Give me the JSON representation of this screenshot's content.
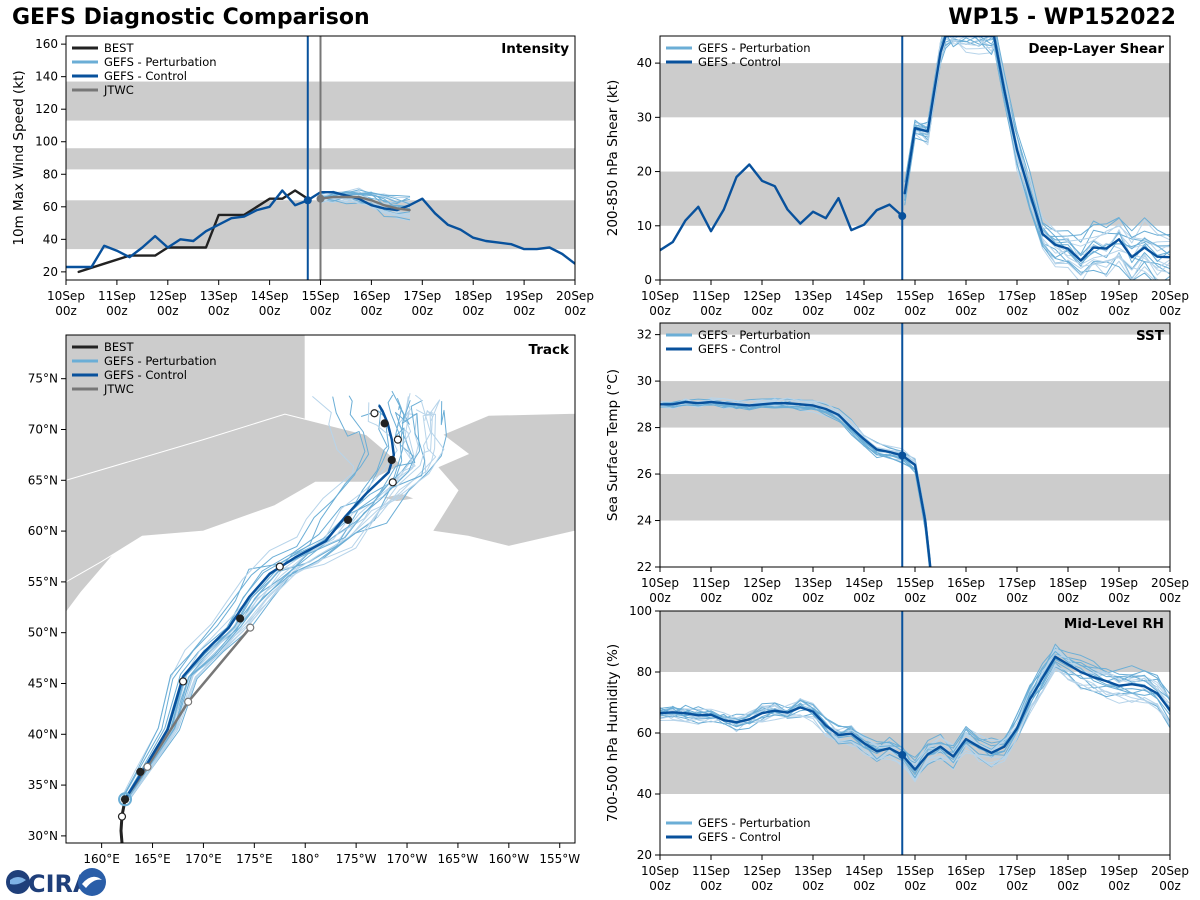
{
  "header": {
    "title_left": "GEFS Diagnostic Comparison",
    "title_right": "WP15 - WP152022"
  },
  "logo": {
    "text": "CIRA"
  },
  "colors": {
    "best": "#222222",
    "perturbation": "#6baed6",
    "perturbation_light": "#b7d4ea",
    "control": "#08519c",
    "jtwc": "#777777",
    "band": "#cccccc",
    "land": "#cccccc"
  },
  "time_ticks": [
    {
      "day": "10Sep",
      "hr": "00z"
    },
    {
      "day": "11Sep",
      "hr": "00z"
    },
    {
      "day": "12Sep",
      "hr": "00z"
    },
    {
      "day": "13Sep",
      "hr": "00z"
    },
    {
      "day": "14Sep",
      "hr": "00z"
    },
    {
      "day": "15Sep",
      "hr": "00z"
    },
    {
      "day": "16Sep",
      "hr": "00z"
    },
    {
      "day": "17Sep",
      "hr": "00z"
    },
    {
      "day": "18Sep",
      "hr": "00z"
    },
    {
      "day": "19Sep",
      "hr": "00z"
    },
    {
      "day": "20Sep",
      "hr": "00z"
    }
  ],
  "chart_data": [
    {
      "id": "intensity",
      "type": "line",
      "panel_label": "Intensity",
      "ylabel": "10m Max Wind Speed (kt)",
      "xlim": [
        0,
        10
      ],
      "ylim": [
        15,
        165
      ],
      "yticks": [
        20,
        40,
        60,
        80,
        100,
        120,
        140,
        160
      ],
      "bands": [
        [
          34,
          64
        ],
        [
          83,
          96
        ],
        [
          113,
          137
        ]
      ],
      "init_time": 4.75,
      "jtwc_time": 5.0,
      "legend": [
        "BEST",
        "GEFS - Perturbation",
        "GEFS - Control",
        "JTWC"
      ],
      "series": [
        {
          "name": "BEST",
          "x": [
            0.25,
            0.75,
            1.25,
            1.5,
            1.75,
            2.0,
            2.25,
            2.5,
            2.75,
            3.0,
            3.25,
            3.5,
            3.75,
            4.0,
            4.25,
            4.5,
            4.75
          ],
          "y": [
            20,
            25,
            30,
            30,
            30,
            35,
            35,
            35,
            35,
            55,
            55,
            55,
            60,
            65,
            65,
            70,
            65
          ]
        },
        {
          "name": "GEFS - Control",
          "x": [
            0,
            0.25,
            0.5,
            0.75,
            1.0,
            1.25,
            1.5,
            1.75,
            2.0,
            2.25,
            2.5,
            2.75,
            3.0,
            3.25,
            3.5,
            3.75,
            4.0,
            4.25,
            4.5,
            4.75
          ],
          "y": [
            23,
            23,
            23,
            36,
            33,
            29,
            35,
            42,
            35,
            40,
            39,
            45,
            49,
            53,
            54,
            58,
            60,
            70,
            61,
            64
          ]
        },
        {
          "name": "GEFS - Control (forecast)",
          "x": [
            4.75,
            5.0,
            5.25,
            5.5,
            5.75,
            6.0,
            6.25,
            6.5,
            6.75,
            7.0,
            7.25,
            7.5,
            7.75,
            8.0,
            8.25,
            8.5,
            8.75,
            9.0,
            9.25,
            9.5,
            9.75,
            10.0
          ],
          "y": [
            64,
            69,
            69,
            67,
            65,
            61,
            59,
            58,
            61,
            65,
            56,
            49,
            46,
            41,
            39,
            38,
            37,
            34,
            34,
            35,
            31,
            25
          ]
        },
        {
          "name": "JTWC",
          "x": [
            5.0,
            5.25,
            5.5,
            5.75,
            6.0,
            6.25,
            6.5,
            6.75
          ],
          "y": [
            65,
            66,
            66,
            66,
            64,
            61,
            59,
            58
          ]
        }
      ]
    },
    {
      "id": "shear",
      "type": "line",
      "panel_label": "Deep-Layer Shear",
      "ylabel": "200-850 hPa Shear (kt)",
      "xlim": [
        0,
        10
      ],
      "ylim": [
        0,
        45
      ],
      "yticks": [
        0,
        10,
        20,
        30,
        40
      ],
      "bands": [
        [
          10,
          20
        ],
        [
          30,
          40
        ]
      ],
      "init_time": 4.75,
      "legend": [
        "GEFS - Perturbation",
        "GEFS - Control"
      ],
      "series": [
        {
          "name": "GEFS - Control (analysis)",
          "x": [
            0,
            0.25,
            0.5,
            0.75,
            1.0,
            1.25,
            1.5,
            1.75,
            2.0,
            2.25,
            2.5,
            2.75,
            3.0,
            3.25,
            3.5,
            3.75,
            4.0,
            4.25,
            4.5,
            4.75
          ],
          "y": [
            5.5,
            7,
            11,
            13.5,
            9,
            13,
            19,
            21.3,
            18.3,
            17.3,
            13,
            10.4,
            12.6,
            11.4,
            15.1,
            9.2,
            10.2,
            12.9,
            13.9,
            11.8
          ]
        },
        {
          "name": "GEFS - Control",
          "x": [
            4.8,
            5.0,
            5.25,
            5.5,
            5.6,
            5.75,
            6.0,
            6.25,
            6.5,
            6.55,
            6.75,
            7.0,
            7.25,
            7.5,
            7.75,
            8.0,
            8.25,
            8.5,
            8.75,
            9.0,
            9.25,
            9.5,
            9.75,
            10.0
          ],
          "y": [
            16,
            28,
            27.4,
            42,
            45,
            45,
            45,
            45,
            45,
            45,
            35,
            24,
            16,
            8.5,
            6.5,
            5.8,
            3.6,
            6,
            5.8,
            7.5,
            4.2,
            6,
            4.3,
            4.2
          ]
        }
      ]
    },
    {
      "id": "track",
      "type": "map",
      "panel_label": "Track",
      "legend": [
        "BEST",
        "GEFS - Perturbation",
        "GEFS - Control",
        "JTWC"
      ],
      "lon_ticks": [
        "160°E",
        "165°E",
        "170°E",
        "175°E",
        "180°",
        "175°W",
        "170°W",
        "165°W",
        "160°W",
        "155°W"
      ],
      "lon_values": [
        160,
        165,
        170,
        175,
        180,
        185,
        190,
        195,
        200,
        205
      ],
      "lat_ticks": [
        "30°N",
        "35°N",
        "40°N",
        "45°N",
        "50°N",
        "55°N",
        "60°N",
        "65°N",
        "70°N",
        "75°N"
      ],
      "lat_values": [
        30,
        35,
        40,
        45,
        50,
        55,
        60,
        65,
        70,
        75
      ],
      "lon_range": [
        156.5,
        206.5
      ],
      "lat_range": [
        29.3,
        79.3
      ],
      "series": [
        {
          "name": "BEST",
          "lon": [
            162,
            161.9,
            162.0,
            162.2,
            162.3
          ],
          "lat": [
            29.3,
            30.5,
            32,
            33.0,
            33.6
          ]
        },
        {
          "name": "GEFS - Control",
          "lon": [
            162.3,
            164,
            166.5,
            168,
            170,
            172.5,
            174.5,
            176.5,
            179,
            182,
            184,
            186,
            188.2,
            188.7,
            188.5,
            188.1,
            187.6,
            187.3
          ],
          "lat": [
            33.6,
            36.3,
            40.5,
            45.7,
            48,
            50.5,
            53.5,
            55.8,
            57.4,
            59,
            61.5,
            63.7,
            65.8,
            67.5,
            69,
            70.6,
            71.8,
            72.3
          ]
        },
        {
          "name": "JTWC",
          "lon": [
            162.3,
            164.5,
            168.5,
            174.6
          ],
          "lat": [
            33.6,
            36.8,
            43.2,
            50.5
          ]
        }
      ],
      "best_points": [
        {
          "lon": 162.0,
          "lat": 31.9,
          "filled": false
        },
        {
          "lon": 162.3,
          "lat": 33.6,
          "filled": true
        },
        {
          "lon": 163.8,
          "lat": 36.3,
          "filled": true
        },
        {
          "lon": 168.0,
          "lat": 45.2,
          "filled": false
        },
        {
          "lon": 173.6,
          "lat": 51.4,
          "filled": true
        },
        {
          "lon": 177.5,
          "lat": 56.5,
          "filled": false
        },
        {
          "lon": 184.2,
          "lat": 61.1,
          "filled": true
        },
        {
          "lon": 188.6,
          "lat": 64.8,
          "filled": false
        },
        {
          "lon": 188.5,
          "lat": 67.0,
          "filled": true
        },
        {
          "lon": 189.1,
          "lat": 69.0,
          "filled": false
        },
        {
          "lon": 187.8,
          "lat": 70.6,
          "filled": true
        },
        {
          "lon": 186.8,
          "lat": 71.6,
          "filled": false
        }
      ],
      "jtwc_points": [
        {
          "lon": 164.5,
          "lat": 36.8
        },
        {
          "lon": 168.5,
          "lat": 43.2
        },
        {
          "lon": 174.6,
          "lat": 50.5
        }
      ]
    },
    {
      "id": "sst",
      "type": "line",
      "panel_label": "SST",
      "ylabel": "Sea Surface Temp (°C)",
      "xlim": [
        0,
        10
      ],
      "ylim": [
        22,
        32.5
      ],
      "yticks": [
        22,
        24,
        26,
        28,
        30,
        32
      ],
      "bands": [
        [
          24,
          26
        ],
        [
          28,
          30
        ],
        [
          32,
          34
        ]
      ],
      "init_time": 4.75,
      "legend": [
        "GEFS - Perturbation",
        "GEFS - Control"
      ],
      "series": [
        {
          "name": "GEFS - Control",
          "x": [
            0,
            0.25,
            0.5,
            0.75,
            1.0,
            1.25,
            1.5,
            1.75,
            2.0,
            2.25,
            2.5,
            2.75,
            3.0,
            3.25,
            3.5,
            3.75,
            4.0,
            4.25,
            4.5,
            4.75,
            5.0,
            5.2,
            5.3
          ],
          "y": [
            29.0,
            29.0,
            29.1,
            29.05,
            29.1,
            29.05,
            29.0,
            28.95,
            29.0,
            29.05,
            29.05,
            29.0,
            28.95,
            28.8,
            28.55,
            28.0,
            27.5,
            27.05,
            26.95,
            26.8,
            26.4,
            24.0,
            22.0
          ]
        }
      ]
    },
    {
      "id": "rh",
      "type": "line",
      "panel_label": "Mid-Level RH",
      "ylabel": "700-500 hPa Humidity (%)",
      "xlim": [
        0,
        10
      ],
      "ylim": [
        20,
        100
      ],
      "yticks": [
        20,
        40,
        60,
        80,
        100
      ],
      "bands": [
        [
          40,
          60
        ],
        [
          80,
          100
        ]
      ],
      "init_time": 4.75,
      "legend": [
        "GEFS - Perturbation",
        "GEFS - Control"
      ],
      "series": [
        {
          "name": "GEFS - Control",
          "x": [
            0,
            0.25,
            0.5,
            0.75,
            1.0,
            1.25,
            1.5,
            1.75,
            2.0,
            2.25,
            2.5,
            2.75,
            3.0,
            3.25,
            3.5,
            3.75,
            4.0,
            4.25,
            4.5,
            4.75,
            5.0,
            5.25,
            5.5,
            5.75,
            6.0,
            6.25,
            6.5,
            6.75,
            7.0,
            7.25,
            7.5,
            7.75,
            8.0,
            8.25,
            8.5,
            8.75,
            9.0,
            9.25,
            9.5,
            9.75,
            10.0
          ],
          "y": [
            66.5,
            66.8,
            66.5,
            65.8,
            66,
            64.2,
            63.5,
            64.5,
            66.5,
            67.3,
            66.7,
            68.4,
            67,
            62.5,
            59.3,
            59.8,
            56.7,
            54,
            55,
            52.8,
            48,
            53,
            55.5,
            52.3,
            58,
            55.5,
            53.5,
            55.5,
            61.5,
            71,
            78,
            85,
            82.5,
            80,
            78.3,
            77,
            75.5,
            76,
            75.3,
            73,
            67.5
          ]
        }
      ]
    }
  ]
}
